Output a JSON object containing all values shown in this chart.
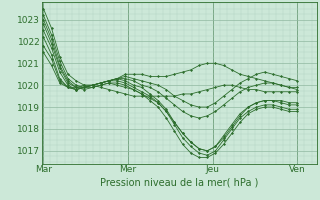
{
  "bg_color": "#cce8d8",
  "grid_color_minor": "#b0d4c0",
  "grid_color_major": "#90b8a0",
  "line_color": "#2d6e2d",
  "marker_color": "#2d6e2d",
  "xlabel": "Pression niveau de la mer( hPa )",
  "xtick_labels": [
    "Mar",
    "Mer",
    "Jeu",
    "Ven"
  ],
  "xtick_positions": [
    0,
    96,
    192,
    288
  ],
  "ytick_values": [
    1017,
    1018,
    1019,
    1020,
    1021,
    1022,
    1023
  ],
  "ylim": [
    1016.4,
    1023.8
  ],
  "xlim": [
    -2,
    310
  ],
  "series": [
    [
      1023.5,
      1022.6,
      1021.3,
      1020.5,
      1020.2,
      1020.0,
      1020.0,
      1019.9,
      1019.8,
      1019.7,
      1019.6,
      1019.5,
      1019.5,
      1019.5,
      1019.5,
      1019.5,
      1019.5,
      1019.6,
      1019.6,
      1019.7,
      1019.8,
      1019.9,
      1020.0,
      1020.0,
      1019.9,
      1019.8,
      1019.8,
      1019.7,
      1019.7,
      1019.7,
      1019.7,
      1019.7
    ],
    [
      1023.2,
      1022.3,
      1021.1,
      1020.3,
      1020.0,
      1019.9,
      1019.9,
      1020.0,
      1020.1,
      1020.0,
      1019.9,
      1019.8,
      1019.6,
      1019.4,
      1019.2,
      1018.8,
      1018.3,
      1017.8,
      1017.4,
      1017.1,
      1017.0,
      1017.2,
      1017.6,
      1018.1,
      1018.6,
      1019.0,
      1019.2,
      1019.3,
      1019.3,
      1019.3,
      1019.2,
      1019.2
    ],
    [
      1023.0,
      1022.1,
      1020.9,
      1020.2,
      1019.9,
      1019.8,
      1019.9,
      1020.0,
      1020.1,
      1020.1,
      1020.0,
      1019.8,
      1019.6,
      1019.3,
      1019.0,
      1018.5,
      1017.9,
      1017.3,
      1016.9,
      1016.7,
      1016.7,
      1016.9,
      1017.3,
      1017.8,
      1018.3,
      1018.7,
      1018.9,
      1019.0,
      1019.0,
      1018.9,
      1018.8,
      1018.8
    ],
    [
      1022.8,
      1021.9,
      1020.8,
      1020.1,
      1019.9,
      1019.9,
      1020.0,
      1020.1,
      1020.2,
      1020.2,
      1020.1,
      1019.9,
      1019.7,
      1019.5,
      1019.2,
      1018.8,
      1018.2,
      1017.6,
      1017.2,
      1016.9,
      1016.8,
      1017.0,
      1017.5,
      1018.0,
      1018.5,
      1018.8,
      1019.0,
      1019.1,
      1019.1,
      1019.0,
      1018.9,
      1018.9
    ],
    [
      1022.5,
      1021.7,
      1020.6,
      1020.0,
      1019.8,
      1019.9,
      1020.0,
      1020.1,
      1020.2,
      1020.3,
      1020.2,
      1020.0,
      1019.9,
      1019.6,
      1019.3,
      1018.9,
      1018.3,
      1017.8,
      1017.4,
      1017.1,
      1017.0,
      1017.2,
      1017.7,
      1018.2,
      1018.7,
      1019.0,
      1019.2,
      1019.3,
      1019.3,
      1019.2,
      1019.1,
      1019.1
    ],
    [
      1022.2,
      1021.4,
      1020.3,
      1019.9,
      1019.8,
      1019.9,
      1020.0,
      1020.1,
      1020.2,
      1020.3,
      1020.3,
      1020.2,
      1020.0,
      1019.9,
      1019.7,
      1019.4,
      1019.1,
      1018.8,
      1018.6,
      1018.5,
      1018.6,
      1018.8,
      1019.1,
      1019.4,
      1019.7,
      1019.9,
      1020.0,
      1020.1,
      1020.1,
      1020.0,
      1019.9,
      1019.9
    ],
    [
      1021.8,
      1021.2,
      1020.2,
      1019.9,
      1019.8,
      1019.9,
      1020.0,
      1020.1,
      1020.2,
      1020.3,
      1020.4,
      1020.3,
      1020.2,
      1020.1,
      1020.0,
      1019.8,
      1019.5,
      1019.3,
      1019.1,
      1019.0,
      1019.0,
      1019.2,
      1019.5,
      1019.8,
      1020.1,
      1020.3,
      1020.5,
      1020.6,
      1020.5,
      1020.4,
      1020.3,
      1020.2
    ],
    [
      1021.5,
      1020.9,
      1020.1,
      1019.9,
      1019.9,
      1020.0,
      1020.0,
      1020.1,
      1020.2,
      1020.3,
      1020.5,
      1020.5,
      1020.5,
      1020.4,
      1020.4,
      1020.4,
      1020.5,
      1020.6,
      1020.7,
      1020.9,
      1021.0,
      1021.0,
      1020.9,
      1020.7,
      1020.5,
      1020.4,
      1020.3,
      1020.2,
      1020.1,
      1020.0,
      1019.9,
      1019.8
    ]
  ]
}
